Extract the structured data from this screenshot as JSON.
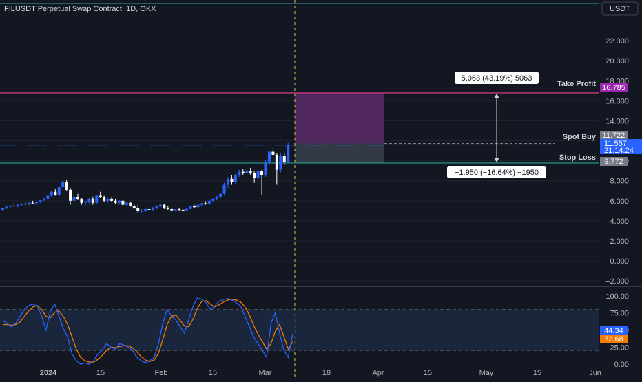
{
  "header": {
    "symbol_title": "FILUSDT Perpetual Swap Contract, 1D, OKX",
    "currency_button": "USDT"
  },
  "colors": {
    "background": "#131722",
    "grid": "#1e222d",
    "axis_text": "#b2b5be",
    "candle_up": "#2962ff",
    "candle_down": "#ffffff",
    "take_profit_line": "#f23d8f",
    "stop_loss_line": "#26a69a",
    "cursor_line": "#c9c94a",
    "stoch_k": "#2962ff",
    "stoch_d": "#f57c00",
    "profit_zone": "#5c2a6a",
    "loss_zone": "#3a3f4b"
  },
  "chart_data": [
    {
      "type": "candlestick",
      "title": "",
      "y_axis": {
        "range": [
          -2.4,
          24.0
        ],
        "tick_labels": [
          "22.000",
          "20.000",
          "18.000",
          "16.000",
          "14.000",
          "12.000",
          "10.000",
          "8.000",
          "6.000",
          "4.000",
          "2.000",
          "0.000",
          "−2.000"
        ],
        "tick_values": [
          22,
          20,
          18,
          16,
          14,
          12,
          10,
          8,
          6,
          4,
          2,
          0,
          -2
        ]
      },
      "x_axis": {
        "tick_labels": [
          "2024",
          "15",
          "Feb",
          "15",
          "Mar",
          "18",
          "Apr",
          "15",
          "May",
          "15",
          "Jun"
        ]
      },
      "candles": [
        [
          5.1,
          5.3,
          5.0,
          5.3
        ],
        [
          5.3,
          5.45,
          5.2,
          5.4
        ],
        [
          5.4,
          5.6,
          5.3,
          5.5
        ],
        [
          5.5,
          5.65,
          5.4,
          5.45
        ],
        [
          5.45,
          5.7,
          5.35,
          5.6
        ],
        [
          5.6,
          5.75,
          5.5,
          5.7
        ],
        [
          5.7,
          5.9,
          5.6,
          5.65
        ],
        [
          5.65,
          5.85,
          5.55,
          5.8
        ],
        [
          5.8,
          6.0,
          5.7,
          5.75
        ],
        [
          5.75,
          6.0,
          5.6,
          5.9
        ],
        [
          5.9,
          6.1,
          5.8,
          6.05
        ],
        [
          6.05,
          6.3,
          5.95,
          6.2
        ],
        [
          6.2,
          6.6,
          6.1,
          6.5
        ],
        [
          6.5,
          7.0,
          6.4,
          6.9
        ],
        [
          6.9,
          7.2,
          6.5,
          6.6
        ],
        [
          6.6,
          7.5,
          6.5,
          7.4
        ],
        [
          7.4,
          8.1,
          7.2,
          7.9
        ],
        [
          7.9,
          8.1,
          7.0,
          7.1
        ],
        [
          7.1,
          7.3,
          5.6,
          6.0
        ],
        [
          6.0,
          6.6,
          5.8,
          6.4
        ],
        [
          6.4,
          6.7,
          6.1,
          6.2
        ],
        [
          6.2,
          6.3,
          5.6,
          5.8
        ],
        [
          5.8,
          6.1,
          5.5,
          5.9
        ],
        [
          5.9,
          6.3,
          5.7,
          6.2
        ],
        [
          6.2,
          6.4,
          5.6,
          5.8
        ],
        [
          5.8,
          6.6,
          5.7,
          6.5
        ],
        [
          6.5,
          6.9,
          6.3,
          6.4
        ],
        [
          6.4,
          6.5,
          5.9,
          6.0
        ],
        [
          6.0,
          6.3,
          5.8,
          6.2
        ],
        [
          6.2,
          6.4,
          5.9,
          6.0
        ],
        [
          6.0,
          6.2,
          5.7,
          5.8
        ],
        [
          5.8,
          6.1,
          5.6,
          6.0
        ],
        [
          6.0,
          6.1,
          5.5,
          5.6
        ],
        [
          5.6,
          5.9,
          5.5,
          5.8
        ],
        [
          5.8,
          5.9,
          5.4,
          5.5
        ],
        [
          5.5,
          5.7,
          5.2,
          5.3
        ],
        [
          5.3,
          5.6,
          4.8,
          5.0
        ],
        [
          5.0,
          5.2,
          4.8,
          5.0
        ],
        [
          5.0,
          5.3,
          4.9,
          5.2
        ],
        [
          5.2,
          5.4,
          5.0,
          5.1
        ],
        [
          5.1,
          5.4,
          5.0,
          5.3
        ],
        [
          5.3,
          5.5,
          5.2,
          5.45
        ],
        [
          5.45,
          5.7,
          5.3,
          5.6
        ],
        [
          5.6,
          5.7,
          5.2,
          5.3
        ],
        [
          5.3,
          5.5,
          5.1,
          5.2
        ],
        [
          5.2,
          5.3,
          5.0,
          5.05
        ],
        [
          5.05,
          5.2,
          4.95,
          5.15
        ],
        [
          5.15,
          5.3,
          5.0,
          5.1
        ],
        [
          5.1,
          5.2,
          4.95,
          5.05
        ],
        [
          5.05,
          5.3,
          5.0,
          5.25
        ],
        [
          5.25,
          5.5,
          5.2,
          5.45
        ],
        [
          5.45,
          5.6,
          5.3,
          5.35
        ],
        [
          5.35,
          5.7,
          5.3,
          5.6
        ],
        [
          5.6,
          5.8,
          5.5,
          5.75
        ],
        [
          5.75,
          5.95,
          5.6,
          5.7
        ],
        [
          5.7,
          6.1,
          5.6,
          6.0
        ],
        [
          6.0,
          6.3,
          5.9,
          6.2
        ],
        [
          6.2,
          6.5,
          6.1,
          6.4
        ],
        [
          6.4,
          6.8,
          6.3,
          6.7
        ],
        [
          6.7,
          7.8,
          6.6,
          7.6
        ],
        [
          7.6,
          8.4,
          7.3,
          8.2
        ],
        [
          8.2,
          8.6,
          7.6,
          7.9
        ],
        [
          7.9,
          8.8,
          7.7,
          8.6
        ],
        [
          8.6,
          9.1,
          8.4,
          8.9
        ],
        [
          8.9,
          9.2,
          8.6,
          8.8
        ],
        [
          8.8,
          9.3,
          8.7,
          9.0
        ],
        [
          9.0,
          9.3,
          8.6,
          8.8
        ],
        [
          8.8,
          9.0,
          7.8,
          8.3
        ],
        [
          8.3,
          9.2,
          8.2,
          9.0
        ],
        [
          9.0,
          9.1,
          6.6,
          8.6
        ],
        [
          8.6,
          10.1,
          8.4,
          9.9
        ],
        [
          9.9,
          11.0,
          9.6,
          10.9
        ],
        [
          10.9,
          11.3,
          10.5,
          10.6
        ],
        [
          10.6,
          10.8,
          7.6,
          9.1
        ],
        [
          9.1,
          10.8,
          8.8,
          10.5
        ],
        [
          10.5,
          10.8,
          9.6,
          9.9
        ],
        [
          9.9,
          11.8,
          9.8,
          11.6
        ]
      ]
    },
    {
      "type": "line",
      "title": "",
      "y_axis": {
        "range": [
          -7,
          112
        ],
        "tick_labels": [
          "100.00",
          "75.00",
          "50.00",
          "25.00",
          "0.00"
        ],
        "tick_values": [
          100,
          75,
          50,
          25,
          0
        ],
        "bands": [
          20,
          50,
          80
        ]
      },
      "series": [
        {
          "values": [
            64,
            60,
            55,
            60,
            70,
            80,
            86,
            88,
            85,
            70,
            50,
            78,
            88,
            70,
            52,
            40,
            15,
            5,
            0,
            2,
            0,
            5,
            15,
            20,
            30,
            25,
            22,
            30,
            28,
            25,
            20,
            10,
            5,
            2,
            5,
            10,
            30,
            60,
            80,
            70,
            65,
            55,
            45,
            65,
            85,
            97,
            95,
            90,
            80,
            85,
            92,
            95,
            96,
            94,
            90,
            85,
            70,
            55,
            40,
            30,
            20,
            10,
            60,
            75,
            45,
            20,
            10,
            44.34
          ]
        },
        {
          "values": [
            58,
            58,
            57,
            58,
            62,
            70,
            78,
            84,
            86,
            80,
            70,
            68,
            76,
            78,
            70,
            58,
            40,
            22,
            10,
            5,
            3,
            3,
            7,
            13,
            20,
            25,
            24,
            26,
            27,
            27,
            24,
            18,
            11,
            6,
            4,
            6,
            16,
            36,
            58,
            70,
            72,
            64,
            56,
            55,
            66,
            82,
            92,
            93,
            88,
            84,
            87,
            91,
            94,
            95,
            94,
            91,
            84,
            72,
            57,
            44,
            33,
            22,
            30,
            48,
            58,
            40,
            22,
            32.68
          ]
        }
      ],
      "last_values": [
        "44.34",
        "32.68"
      ]
    }
  ],
  "position_tool": {
    "take_profit_label": "Take Profit",
    "take_profit_value": "16.785",
    "entry_label": "Spot Buy",
    "entry_value": "11.722",
    "stop_loss_label": "Stop Loss",
    "stop_loss_value": "9.772",
    "profit_callout": "5.063 (43.19%) 5063",
    "loss_callout": "−1.950 (−16.64%) −1950",
    "take_profit": 16.785,
    "entry": 11.722,
    "stop_loss": 9.772
  },
  "current_price": {
    "value": "11.557",
    "countdown": "21:14:24",
    "price": 11.557
  }
}
